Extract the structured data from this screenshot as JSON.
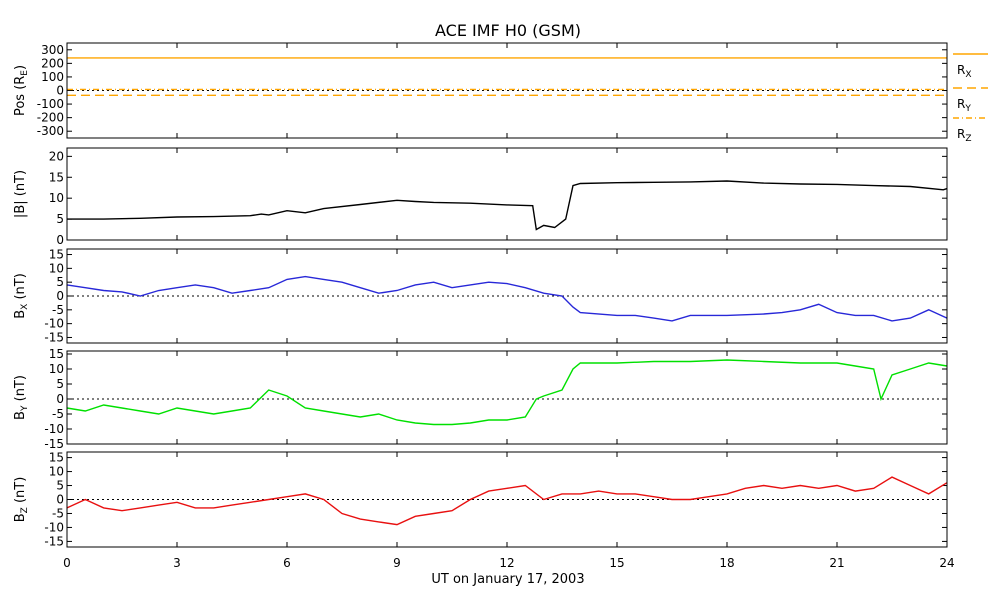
{
  "chart_data": {
    "title": "ACE IMF H0 (GSM)",
    "xlabel": "UT on January 17, 2003",
    "xlim": [
      0,
      24
    ],
    "x_ticks": [
      0,
      3,
      6,
      9,
      12,
      15,
      18,
      21,
      24
    ],
    "panels": [
      {
        "id": "pos",
        "type": "line",
        "ylabel_main": "Pos (R",
        "ylabel_sub": "E",
        "ylabel_tail": ")",
        "ylim": [
          -350,
          350
        ],
        "y_ticks": [
          300,
          200,
          100,
          0,
          -100,
          -200,
          -300
        ],
        "zero_line": true,
        "series": [
          {
            "name_main": "R",
            "name_sub": "X",
            "color": "#FFA500",
            "dash": "solid",
            "x": [
              0,
              24
            ],
            "y": [
              240,
              240
            ]
          },
          {
            "name_main": "R",
            "name_sub": "Y",
            "color": "#FFA500",
            "dash": "long",
            "x": [
              0,
              24
            ],
            "y": [
              -35,
              -35
            ]
          },
          {
            "name_main": "R",
            "name_sub": "Z",
            "color": "#FFA500",
            "dash": "dotdash",
            "x": [
              0,
              24
            ],
            "y": [
              8,
              8
            ]
          }
        ]
      },
      {
        "id": "bmag",
        "type": "line",
        "ylabel_main": "|B| (nT)",
        "ylabel_sub": "",
        "ylabel_tail": "",
        "ylim": [
          0,
          22
        ],
        "y_ticks": [
          0,
          5,
          10,
          15,
          20
        ],
        "zero_line": false,
        "series": [
          {
            "name_main": "|B|",
            "name_sub": "",
            "color": "#000000",
            "x": [
              0,
              1,
              2,
              3,
              4,
              5,
              5.3,
              5.5,
              6,
              6.5,
              7,
              8,
              9,
              9.5,
              10,
              11,
              12,
              12.7,
              12.8,
              13,
              13.3,
              13.6,
              13.8,
              14,
              15,
              16,
              17,
              18,
              19,
              20,
              21,
              22,
              23,
              23.9,
              24
            ],
            "y": [
              5,
              5,
              5.2,
              5.5,
              5.6,
              5.8,
              6.2,
              6,
              7,
              6.5,
              7.5,
              8.5,
              9.5,
              9.2,
              9,
              8.8,
              8.4,
              8.2,
              2.5,
              3.5,
              3,
              5,
              13,
              13.5,
              13.7,
              13.8,
              13.9,
              14.1,
              13.6,
              13.4,
              13.3,
              13,
              12.8,
              12,
              12.3
            ]
          }
        ]
      },
      {
        "id": "bx",
        "type": "line",
        "ylabel_main": "B",
        "ylabel_sub": "X",
        "ylabel_tail": " (nT)",
        "ylim": [
          -17,
          17
        ],
        "y_ticks": [
          15,
          10,
          5,
          0,
          -5,
          -10,
          -15
        ],
        "zero_line": true,
        "series": [
          {
            "name_main": "B",
            "name_sub": "X",
            "color": "#2828D8",
            "x": [
              0,
              0.5,
              1,
              1.5,
              2,
              2.5,
              3,
              3.5,
              4,
              4.5,
              5,
              5.5,
              6,
              6.5,
              7,
              7.5,
              8,
              8.5,
              9,
              9.5,
              10,
              10.5,
              11,
              11.5,
              12,
              12.5,
              13,
              13.5,
              13.8,
              14,
              15,
              15.5,
              16,
              16.5,
              17,
              18,
              19,
              19.5,
              20,
              20.5,
              21,
              21.5,
              22,
              22.5,
              23,
              23.5,
              24
            ],
            "y": [
              4,
              3,
              2,
              1.5,
              0,
              2,
              3,
              4,
              3,
              1,
              2,
              3,
              6,
              7,
              6,
              5,
              3,
              1,
              2,
              4,
              5,
              3,
              4,
              5,
              4.5,
              3,
              1,
              0,
              -4,
              -6,
              -7,
              -7,
              -8,
              -9,
              -7,
              -7,
              -6.5,
              -6,
              -5,
              -3,
              -6,
              -7,
              -7,
              -9,
              -8,
              -5,
              -8
            ]
          }
        ]
      },
      {
        "id": "by",
        "type": "line",
        "ylabel_main": "B",
        "ylabel_sub": "Y",
        "ylabel_tail": " (nT)",
        "ylim": [
          -15,
          16
        ],
        "y_ticks": [
          15,
          10,
          5,
          0,
          -5,
          -10,
          -15
        ],
        "zero_line": true,
        "series": [
          {
            "name_main": "B",
            "name_sub": "Y",
            "color": "#00E000",
            "x": [
              0,
              0.5,
              1,
              1.5,
              2,
              2.5,
              3,
              3.5,
              4,
              4.5,
              5,
              5.5,
              6,
              6.5,
              7,
              7.5,
              8,
              8.5,
              9,
              9.5,
              10,
              10.5,
              11,
              11.5,
              12,
              12.5,
              12.8,
              13,
              13.5,
              13.8,
              14,
              15,
              16,
              17,
              18,
              19,
              20,
              21,
              21.5,
              22,
              22.2,
              22.5,
              23,
              23.5,
              24
            ],
            "y": [
              -3,
              -4,
              -2,
              -3,
              -4,
              -5,
              -3,
              -4,
              -5,
              -4,
              -3,
              3,
              1,
              -3,
              -4,
              -5,
              -6,
              -5,
              -7,
              -8,
              -8.5,
              -8.5,
              -8,
              -7,
              -7,
              -6,
              0,
              1,
              3,
              10,
              12,
              12,
              12.5,
              12.5,
              13,
              12.5,
              12,
              12,
              11,
              10,
              0,
              8,
              10,
              12,
              11
            ]
          }
        ]
      },
      {
        "id": "bz",
        "type": "line",
        "ylabel_main": "B",
        "ylabel_sub": "Z",
        "ylabel_tail": " (nT)",
        "ylim": [
          -17,
          17
        ],
        "y_ticks": [
          15,
          10,
          5,
          0,
          -5,
          -10,
          -15
        ],
        "zero_line": true,
        "series": [
          {
            "name_main": "B",
            "name_sub": "Z",
            "color": "#E81010",
            "x": [
              0,
              0.5,
              1,
              1.5,
              2,
              2.5,
              3,
              3.5,
              4,
              4.5,
              5,
              5.5,
              6,
              6.5,
              7,
              7.5,
              8,
              8.5,
              9,
              9.5,
              10,
              10.5,
              11,
              11.5,
              12,
              12.5,
              13,
              13.5,
              14,
              14.5,
              15,
              15.5,
              16,
              16.5,
              17,
              17.5,
              18,
              18.5,
              19,
              19.5,
              20,
              20.5,
              21,
              21.5,
              22,
              22.5,
              23,
              23.5,
              24
            ],
            "y": [
              -3,
              0,
              -3,
              -4,
              -3,
              -2,
              -1,
              -3,
              -3,
              -2,
              -1,
              0,
              1,
              2,
              0,
              -5,
              -7,
              -8,
              -9,
              -6,
              -5,
              -4,
              0,
              3,
              4,
              5,
              0,
              2,
              2,
              3,
              2,
              2,
              1,
              0,
              0,
              1,
              2,
              4,
              5,
              4,
              5,
              4,
              5,
              3,
              4,
              8,
              5,
              2,
              6
            ]
          }
        ]
      }
    ]
  }
}
